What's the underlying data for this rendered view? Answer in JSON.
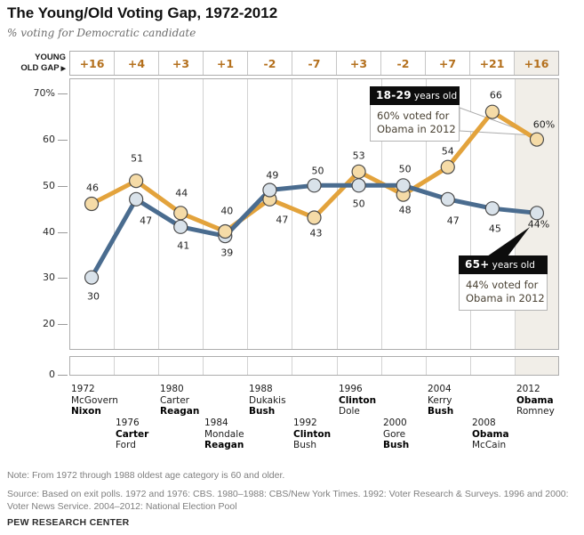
{
  "title": "The Young/Old Voting Gap, 1972-2012",
  "subtitle": "% voting for Democratic candidate",
  "gap_row": {
    "label_line1": "YOUNG",
    "label_line2": "OLD GAP",
    "arrow": "▶",
    "values": [
      "+16",
      "+4",
      "+3",
      "+1",
      "-2",
      "-7",
      "+3",
      "-2",
      "+7",
      "+21",
      "+16"
    ]
  },
  "y_axis": {
    "tick_labels": [
      "70%",
      "60",
      "50",
      "40",
      "30",
      "20"
    ],
    "zero_label": "0"
  },
  "chart_data": {
    "type": "line",
    "x": [
      1972,
      1976,
      1980,
      1984,
      1988,
      1992,
      1996,
      2000,
      2004,
      2008,
      2012
    ],
    "series": [
      {
        "name": "18-29 years old",
        "values": [
          46,
          51,
          44,
          40,
          47,
          43,
          53,
          48,
          54,
          66,
          60
        ]
      },
      {
        "name": "65+ years old",
        "values": [
          30,
          47,
          41,
          39,
          49,
          50,
          50,
          50,
          47,
          45,
          44
        ]
      }
    ],
    "young_old_gap": [
      16,
      4,
      3,
      1,
      -2,
      -7,
      3,
      -2,
      7,
      21,
      16
    ],
    "ylabel": "% voting for Democratic candidate",
    "ylim": [
      0,
      75
    ],
    "axis_break": true,
    "highlighted_column": 2012
  },
  "colors": {
    "young_line": "#E3A33C",
    "young_point_fill": "#F5DBA7",
    "old_line": "#4A6C8F",
    "old_point_fill": "#D9E2EA",
    "point_stroke": "#4A4A4A",
    "gap_text": "#B4701D",
    "highlight_bg": "#F1EEE8",
    "annotation_bg": "#0D0D0D"
  },
  "annotations": {
    "young": {
      "header_bold": "18-29",
      "header_rest": "years old",
      "body_line1": "60% voted for",
      "body_line2": "Obama in 2012"
    },
    "old": {
      "header_bold": "65+",
      "header_rest": "years old",
      "body_line1": "44% voted for",
      "body_line2": "Obama in 2012"
    }
  },
  "elections": [
    {
      "year": "1972",
      "dem": "McGovern",
      "rep": "Nixon",
      "winner": "rep"
    },
    {
      "year": "1976",
      "dem": "Carter",
      "rep": "Ford",
      "winner": "dem"
    },
    {
      "year": "1980",
      "dem": "Carter",
      "rep": "Reagan",
      "winner": "rep"
    },
    {
      "year": "1984",
      "dem": "Mondale",
      "rep": "Reagan",
      "winner": "rep"
    },
    {
      "year": "1988",
      "dem": "Dukakis",
      "rep": "Bush",
      "winner": "rep"
    },
    {
      "year": "1992",
      "dem": "Clinton",
      "rep": "Bush",
      "winner": "dem"
    },
    {
      "year": "1996",
      "dem": "Clinton",
      "rep": "Dole",
      "winner": "dem"
    },
    {
      "year": "2000",
      "dem": "Gore",
      "rep": "Bush",
      "winner": "rep"
    },
    {
      "year": "2004",
      "dem": "Kerry",
      "rep": "Bush",
      "winner": "rep"
    },
    {
      "year": "2008",
      "dem": "Obama",
      "rep": "McCain",
      "winner": "dem"
    },
    {
      "year": "2012",
      "dem": "Obama",
      "rep": "Romney",
      "winner": "dem"
    }
  ],
  "footer": {
    "note": "Note: From 1972 through 1988 oldest age category is 60 and older.",
    "source_line1": "Source: Based on exit polls. 1972 and 1976: CBS. 1980–1988:  CBS/New York Times. 1992: Voter Research & Surveys. 1996 and 2000:",
    "source_line2": "Voter News Service. 2004–2012: National Election Pool",
    "brand": "PEW RESEARCH CENTER"
  }
}
